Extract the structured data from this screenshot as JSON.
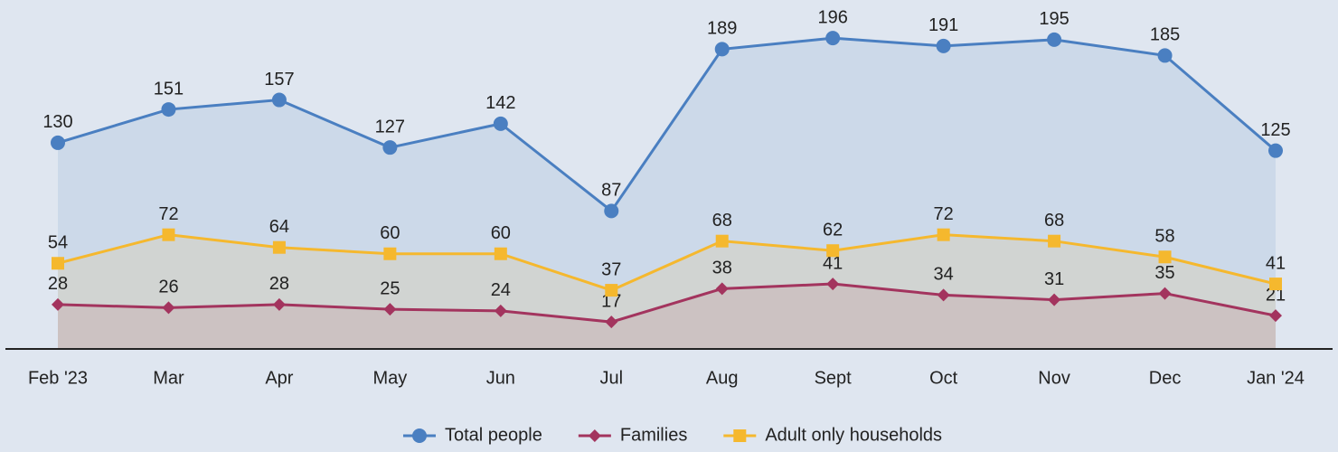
{
  "chart_data": {
    "type": "line",
    "area": true,
    "categories": [
      "Feb '23",
      "Mar",
      "Apr",
      "May",
      "Jun",
      "Jul",
      "Aug",
      "Sept",
      "Oct",
      "Nov",
      "Dec",
      "Jan '24"
    ],
    "series": [
      {
        "name": "Total people",
        "color": "#4a7fc1",
        "marker": "circle",
        "values": [
          130,
          151,
          157,
          127,
          142,
          87,
          189,
          196,
          191,
          195,
          185,
          125
        ]
      },
      {
        "name": "Families",
        "color": "#a3345e",
        "marker": "diamond",
        "values": [
          28,
          26,
          28,
          25,
          24,
          17,
          38,
          41,
          34,
          31,
          35,
          21
        ]
      },
      {
        "name": "Adult only households",
        "color": "#f5b82e",
        "marker": "square",
        "values": [
          54,
          72,
          64,
          60,
          60,
          37,
          68,
          62,
          72,
          68,
          58,
          41
        ]
      }
    ],
    "ylim": [
      0,
      220
    ],
    "legend": "bottom"
  }
}
